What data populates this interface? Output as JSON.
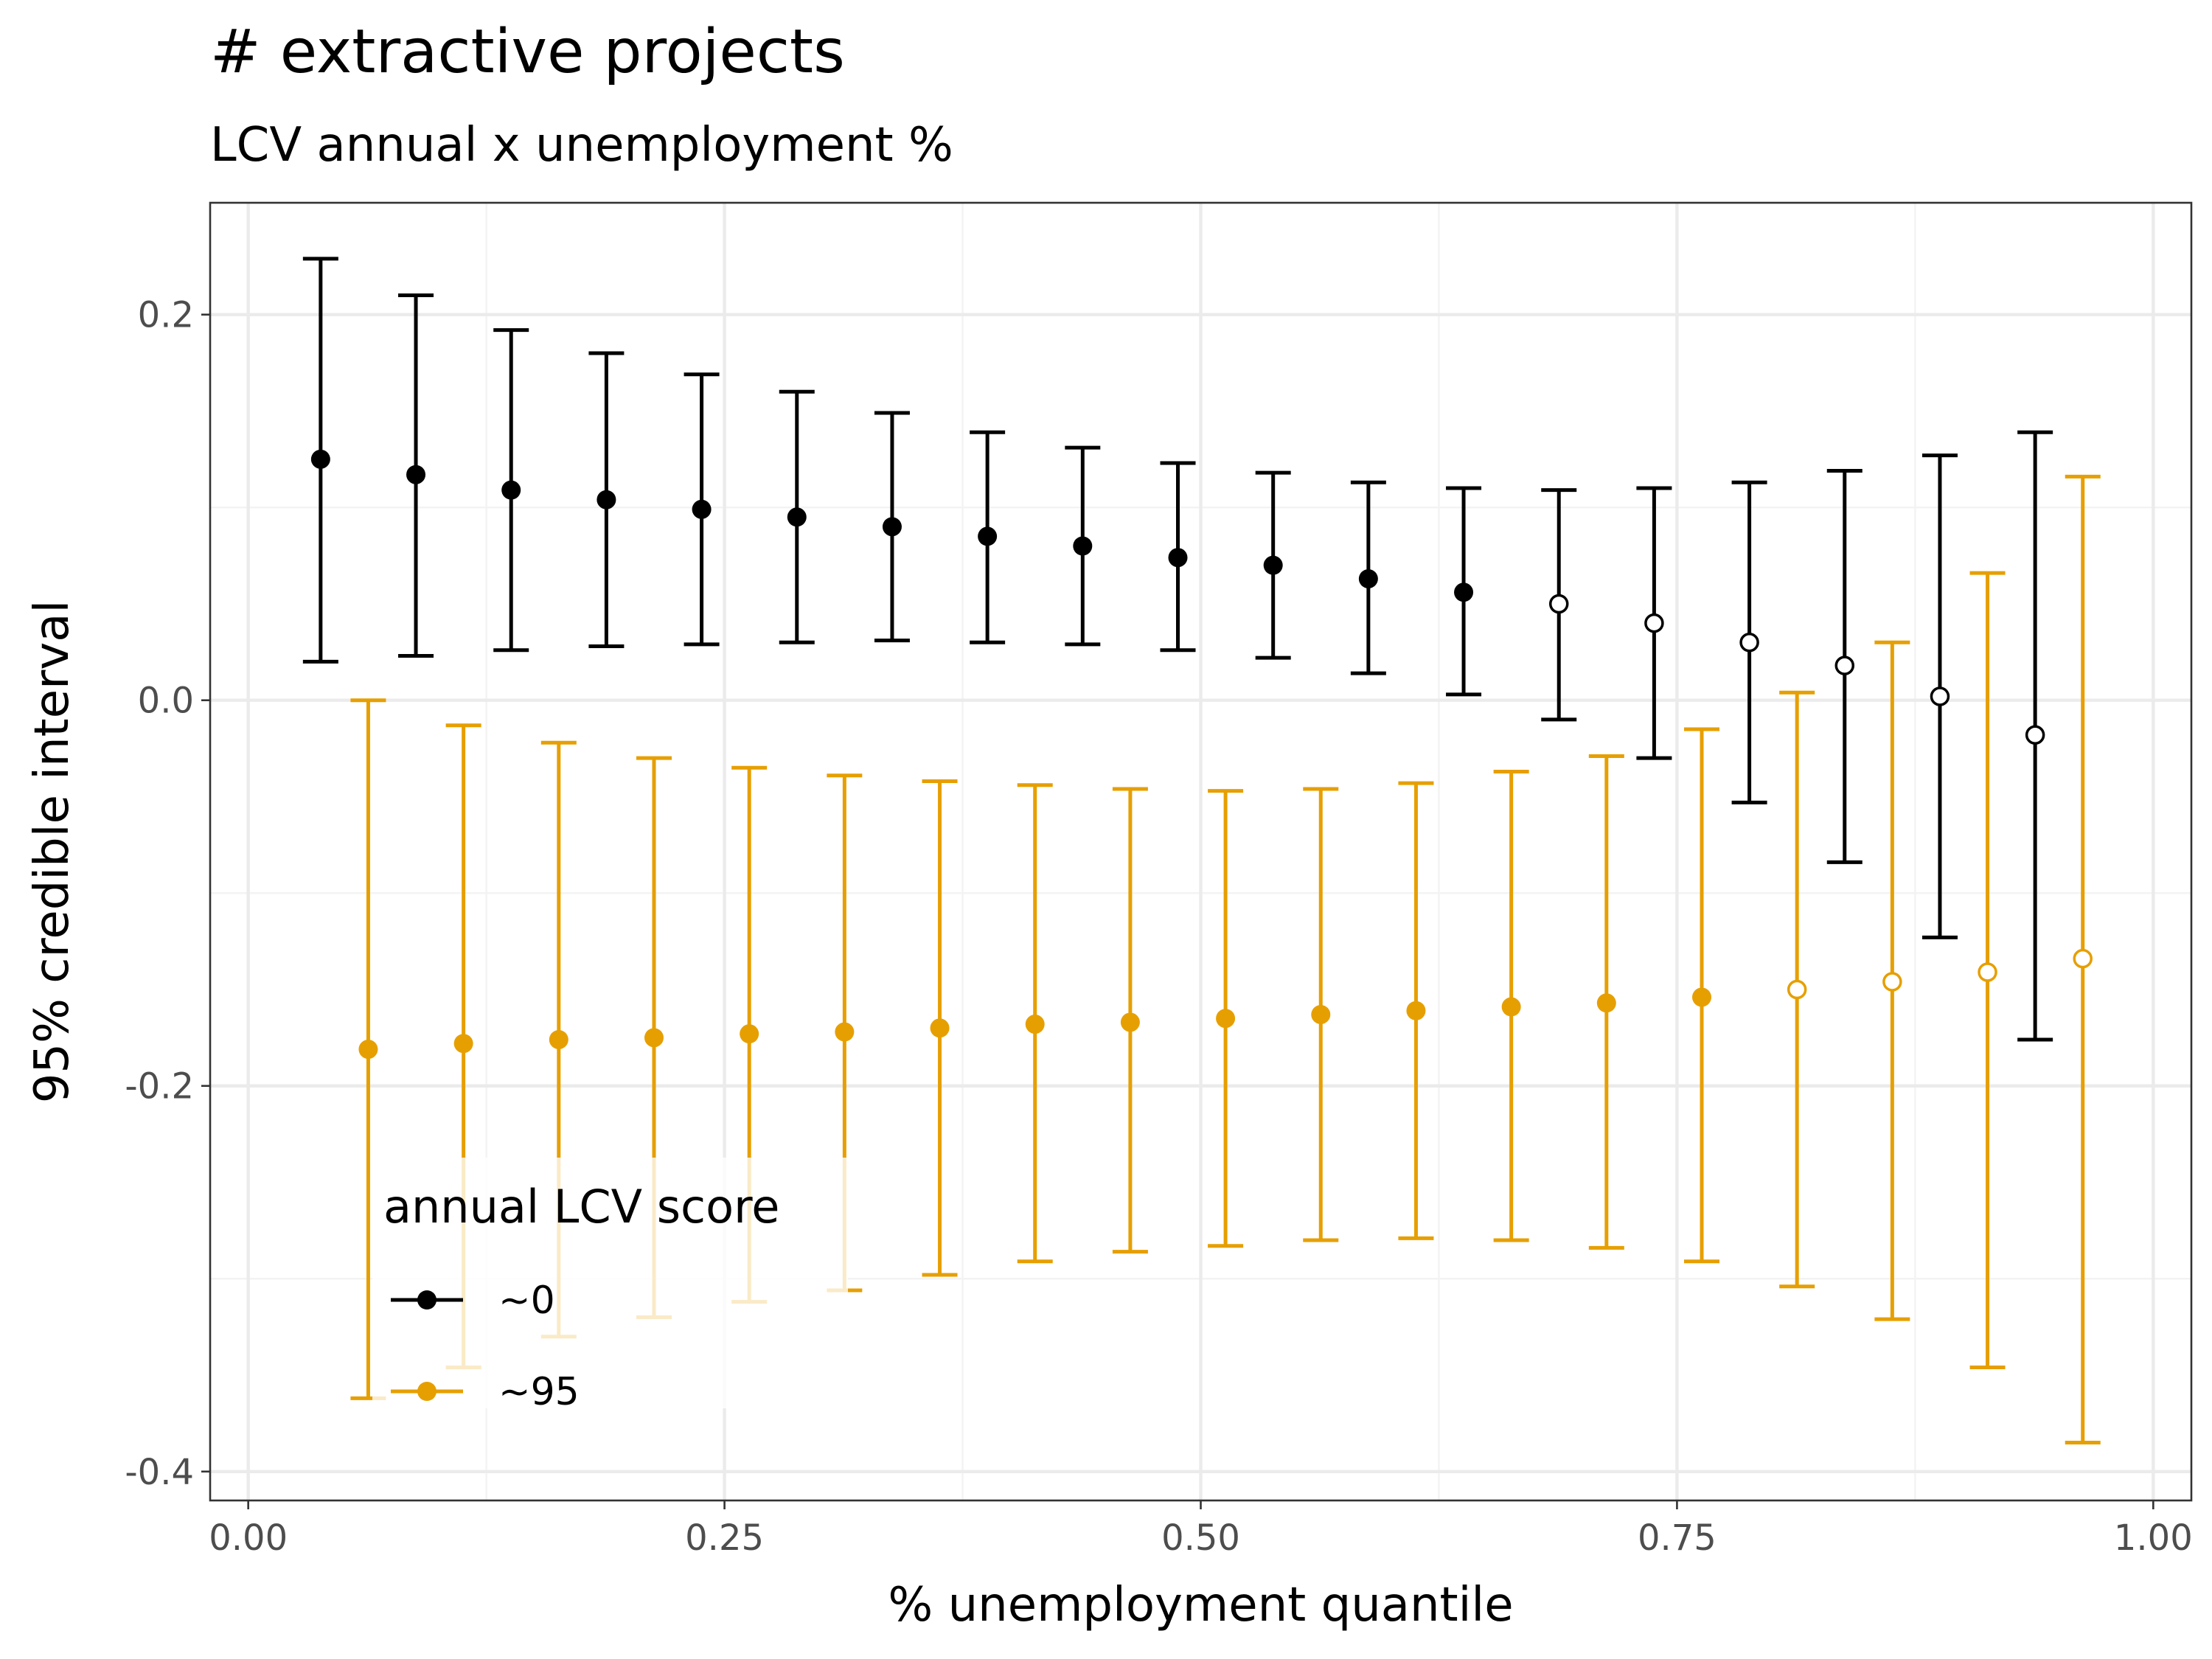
{
  "chart_data": {
    "type": "errorbar",
    "title": "# extractive projects",
    "subtitle": "LCV annual x unemployment %",
    "xlabel": "% unemployment quantile",
    "ylabel": "95% credible interval",
    "xlim": [
      -0.02,
      1.02
    ],
    "ylim": [
      -0.415,
      0.258
    ],
    "x_ticks": [
      0.0,
      0.25,
      0.5,
      0.75,
      1.0
    ],
    "x_tick_labels": [
      "0.00",
      "0.25",
      "0.50",
      "0.75",
      "1.00"
    ],
    "y_ticks": [
      0.2,
      0.0,
      -0.2,
      -0.4
    ],
    "y_tick_labels": [
      "0.2",
      "0.0",
      "-0.2",
      "-0.4"
    ],
    "grid": true,
    "legend": {
      "title": "annual LCV score",
      "position": "bottom-left",
      "entries": [
        "~0",
        "~95"
      ]
    },
    "point_style_note": "filled = interval excludes 0, open = interval includes 0",
    "series": [
      {
        "name": "~0",
        "color": "#000000",
        "x": [
          0.038,
          0.088,
          0.138,
          0.188,
          0.238,
          0.288,
          0.338,
          0.388,
          0.438,
          0.488,
          0.538,
          0.588,
          0.638,
          0.688,
          0.738,
          0.788,
          0.838,
          0.888,
          0.938
        ],
        "estimate": [
          0.125,
          0.117,
          0.109,
          0.104,
          0.099,
          0.095,
          0.09,
          0.085,
          0.08,
          0.074,
          0.07,
          0.063,
          0.056,
          0.05,
          0.04,
          0.03,
          0.018,
          0.002,
          -0.018
        ],
        "lower": [
          0.02,
          0.023,
          0.026,
          0.028,
          0.029,
          0.03,
          0.031,
          0.03,
          0.029,
          0.026,
          0.022,
          0.014,
          0.003,
          -0.01,
          -0.03,
          -0.053,
          -0.084,
          -0.123,
          -0.176
        ],
        "upper": [
          0.229,
          0.21,
          0.192,
          0.18,
          0.169,
          0.16,
          0.149,
          0.139,
          0.131,
          0.123,
          0.118,
          0.113,
          0.11,
          0.109,
          0.11,
          0.113,
          0.119,
          0.127,
          0.139
        ],
        "filled": [
          true,
          true,
          true,
          true,
          true,
          true,
          true,
          true,
          true,
          true,
          true,
          true,
          true,
          false,
          false,
          false,
          false,
          false,
          false
        ]
      },
      {
        "name": "~95",
        "color": "#E69F00",
        "x": [
          0.063,
          0.113,
          0.163,
          0.213,
          0.263,
          0.313,
          0.363,
          0.413,
          0.463,
          0.513,
          0.563,
          0.613,
          0.663,
          0.713,
          0.763,
          0.813,
          0.863,
          0.913,
          0.963
        ],
        "estimate": [
          -0.181,
          -0.178,
          -0.176,
          -0.175,
          -0.173,
          -0.172,
          -0.17,
          -0.168,
          -0.167,
          -0.165,
          -0.163,
          -0.161,
          -0.159,
          -0.157,
          -0.154,
          -0.15,
          -0.146,
          -0.141,
          -0.134
        ],
        "lower": [
          -0.362,
          -0.346,
          -0.33,
          -0.32,
          -0.312,
          -0.306,
          -0.298,
          -0.291,
          -0.286,
          -0.283,
          -0.28,
          -0.279,
          -0.28,
          -0.284,
          -0.291,
          -0.304,
          -0.321,
          -0.346,
          -0.385
        ],
        "upper": [
          0.0,
          -0.013,
          -0.022,
          -0.03,
          -0.035,
          -0.039,
          -0.042,
          -0.044,
          -0.046,
          -0.047,
          -0.046,
          -0.043,
          -0.037,
          -0.029,
          -0.015,
          0.004,
          0.03,
          0.066,
          0.116
        ],
        "filled": [
          true,
          true,
          true,
          true,
          true,
          true,
          true,
          true,
          true,
          true,
          true,
          true,
          true,
          true,
          true,
          false,
          false,
          false,
          false
        ]
      }
    ]
  }
}
